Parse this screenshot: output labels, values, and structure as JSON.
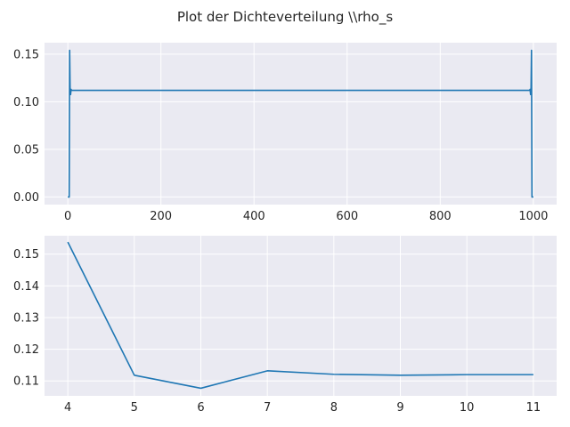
{
  "figure": {
    "title": "Plot der Dichteverteilung \\\\rho_s"
  },
  "chart_data": [
    {
      "type": "line",
      "xlim": [
        -50,
        1050
      ],
      "ylim": [
        -0.008,
        0.162
      ],
      "xticks": [
        0,
        200,
        400,
        600,
        800,
        1000
      ],
      "yticks": [
        0.0,
        0.05,
        0.1,
        0.15
      ],
      "xtick_labels": [
        "0",
        "200",
        "400",
        "600",
        "800",
        "1000"
      ],
      "ytick_labels": [
        "0.00",
        "0.05",
        "0.10",
        "0.15"
      ],
      "grid": true,
      "series": [
        {
          "x": [
            0,
            1,
            2,
            3,
            4,
            5,
            6,
            7,
            8,
            12,
            50,
            200,
            400,
            600,
            800,
            990,
            992,
            993,
            994,
            995,
            996,
            997,
            998,
            999,
            1000
          ],
          "y": [
            0.0,
            0.0,
            0.0,
            0.0,
            0.154,
            0.112,
            0.1075,
            0.113,
            0.112,
            0.112,
            0.112,
            0.112,
            0.112,
            0.112,
            0.112,
            0.112,
            0.112,
            0.113,
            0.1075,
            0.112,
            0.154,
            0.0,
            0.0,
            0.0,
            0.0
          ]
        }
      ]
    },
    {
      "type": "line",
      "xlim": [
        3.65,
        11.35
      ],
      "ylim": [
        0.1053,
        0.1558
      ],
      "xticks": [
        4,
        5,
        6,
        7,
        8,
        9,
        10,
        11
      ],
      "yticks": [
        0.11,
        0.12,
        0.13,
        0.14,
        0.15
      ],
      "xtick_labels": [
        "4",
        "5",
        "6",
        "7",
        "8",
        "9",
        "10",
        "11"
      ],
      "ytick_labels": [
        "0.11",
        "0.12",
        "0.13",
        "0.14",
        "0.15"
      ],
      "grid": true,
      "series": [
        {
          "x": [
            4,
            5,
            6,
            7,
            8,
            9,
            10,
            11
          ],
          "y": [
            0.1538,
            0.1118,
            0.1077,
            0.1132,
            0.1121,
            0.1118,
            0.112,
            0.112
          ]
        }
      ]
    }
  ]
}
